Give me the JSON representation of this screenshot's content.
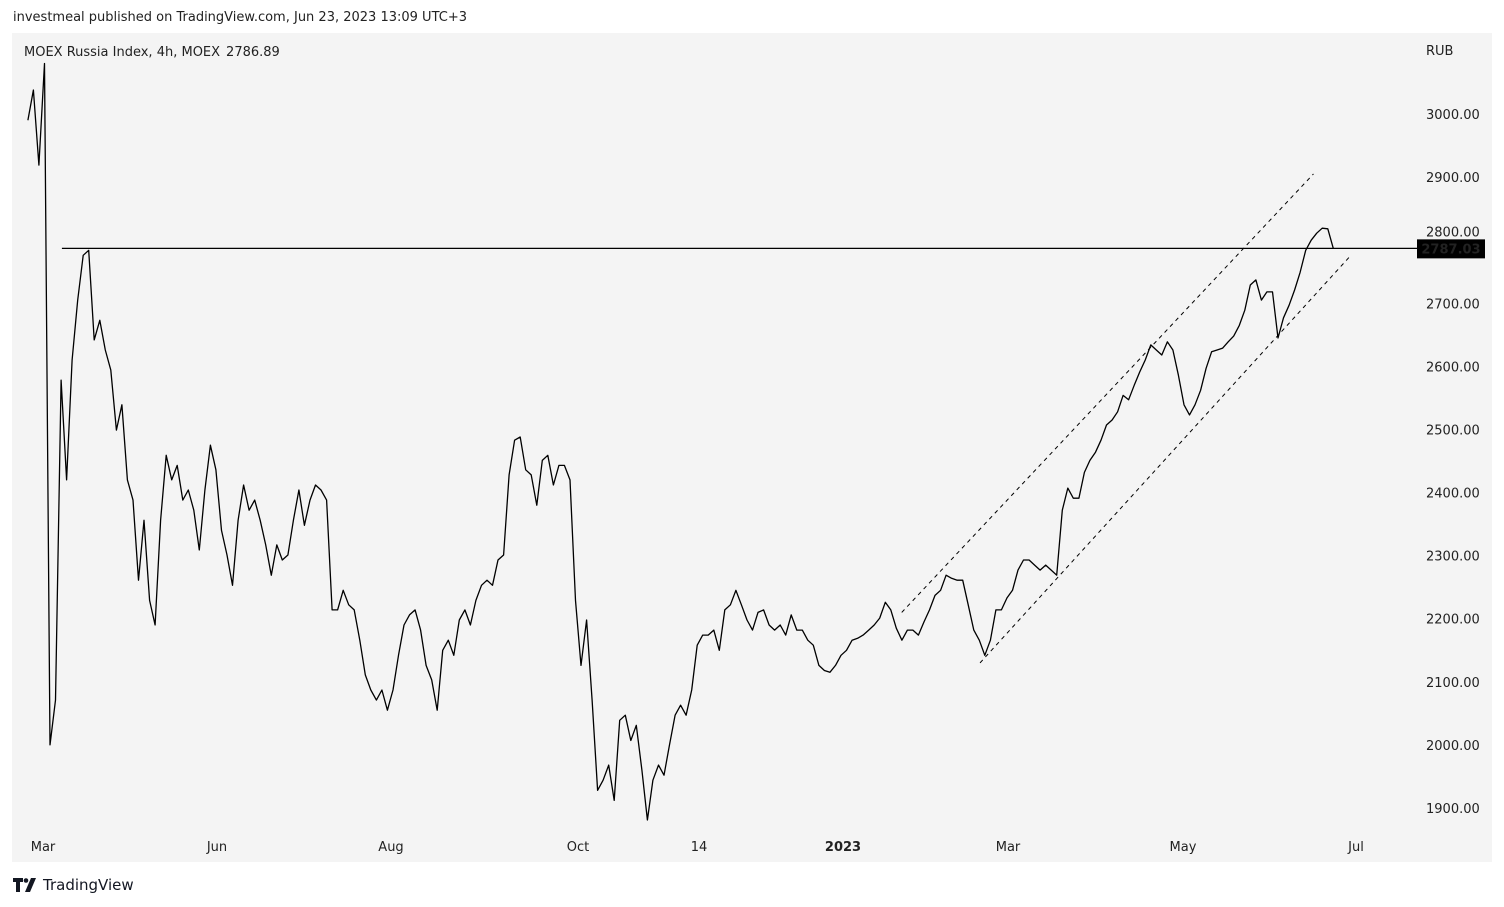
{
  "header": {
    "published": "investmeal published on TradingView.com, Jun 23, 2023 13:09 UTC+3"
  },
  "legend": {
    "symbol": "MOEX Russia Index, 4h, MOEX",
    "last": "2786.89"
  },
  "footer": {
    "brand": "TradingView",
    "icon": "tradingview-logo-icon"
  },
  "colors": {
    "line": "#000000",
    "background": "#f4f4f4",
    "label_bg": "#000000"
  },
  "chart_data": {
    "type": "line",
    "title": "MOEX Russia Index, 4h, MOEX",
    "currency": "RUB",
    "start_date": "2022-02-21",
    "end_date": "2023-06-23",
    "ylim": [
      1850,
      3130
    ],
    "y_ticks": [
      "3000.00",
      "2900.00",
      "2800.00",
      "2700.00",
      "2600.00",
      "2500.00",
      "2400.00",
      "2300.00",
      "2200.00",
      "2100.00",
      "2000.00",
      "1900.00"
    ],
    "x_ticks": [
      {
        "label": "Mar",
        "date": "2022-03-01",
        "bold": false
      },
      {
        "label": "Jun",
        "date": "2022-06-01",
        "bold": false
      },
      {
        "label": "Aug",
        "date": "2022-08-01",
        "bold": false
      },
      {
        "label": "Oct",
        "date": "2022-10-01",
        "bold": false
      },
      {
        "label": "14",
        "date": "2022-11-14",
        "bold": false
      },
      {
        "label": "2023",
        "date": "2023-01-01",
        "bold": true
      },
      {
        "label": "Mar",
        "date": "2023-03-01",
        "bold": false
      },
      {
        "label": "May",
        "date": "2023-05-01",
        "bold": false
      },
      {
        "label": "Jul",
        "date": "2023-07-01",
        "bold": false
      }
    ],
    "values": [
      2990,
      3038,
      2919,
      3080,
      2000,
      2071,
      2578,
      2420,
      2610,
      2705,
      2776,
      2784,
      2642,
      2673,
      2626,
      2594,
      2499,
      2539,
      2420,
      2388,
      2261,
      2356,
      2229,
      2190,
      2356,
      2459,
      2420,
      2443,
      2388,
      2404,
      2372,
      2309,
      2404,
      2475,
      2436,
      2340,
      2301,
      2253,
      2356,
      2412,
      2372,
      2388,
      2356,
      2317,
      2269,
      2317,
      2293,
      2301,
      2356,
      2404,
      2348,
      2388,
      2412,
      2404,
      2388,
      2214,
      2214,
      2245,
      2222,
      2214,
      2166,
      2111,
      2087,
      2071,
      2087,
      2055,
      2087,
      2142,
      2190,
      2206,
      2214,
      2182,
      2126,
      2103,
      2055,
      2150,
      2166,
      2142,
      2198,
      2214,
      2190,
      2229,
      2253,
      2261,
      2253,
      2293,
      2301,
      2428,
      2483,
      2488,
      2436,
      2428,
      2380,
      2451,
      2459,
      2412,
      2443,
      2443,
      2420,
      2229,
      2126,
      2198,
      2071,
      1928,
      1944,
      1968,
      1912,
      2039,
      2047,
      2007,
      2031,
      1960,
      1881,
      1944,
      1968,
      1952,
      2000,
      2047,
      2063,
      2047,
      2087,
      2158,
      2174,
      2174,
      2182,
      2150,
      2214,
      2222,
      2245,
      2222,
      2198,
      2182,
      2210,
      2214,
      2190,
      2182,
      2190,
      2174,
      2206,
      2182,
      2182,
      2166,
      2158,
      2126,
      2118,
      2115,
      2126,
      2142,
      2150,
      2166,
      2169,
      2174,
      2182,
      2190,
      2201,
      2226,
      2214,
      2185,
      2166,
      2182,
      2182,
      2174,
      2195,
      2214,
      2237,
      2245,
      2269,
      2264,
      2261,
      2261,
      2222,
      2182,
      2166,
      2142,
      2166,
      2214,
      2214,
      2233,
      2245,
      2277,
      2293,
      2293,
      2285,
      2277,
      2285,
      2277,
      2269,
      2372,
      2407,
      2391,
      2391,
      2432,
      2451,
      2464,
      2483,
      2507,
      2515,
      2528,
      2554,
      2547,
      2570,
      2591,
      2610,
      2634,
      2626,
      2618,
      2639,
      2626,
      2586,
      2539,
      2523,
      2539,
      2562,
      2597,
      2623,
      2626,
      2629,
      2639,
      2648,
      2665,
      2689,
      2729,
      2737,
      2705,
      2718,
      2718,
      2645,
      2677,
      2697,
      2721,
      2749,
      2784,
      2800,
      2811,
      2819,
      2818,
      2787
    ],
    "horizontal_level": {
      "value": 2787.03,
      "label": "2787.03",
      "start_date": "2022-03-11"
    },
    "channel": {
      "upper": [
        {
          "date": "2023-01-22",
          "value": 2210
        },
        {
          "date": "2023-06-16",
          "value": 2905
        }
      ],
      "lower": [
        {
          "date": "2023-02-19",
          "value": 2130
        },
        {
          "date": "2023-06-29",
          "value": 2775
        }
      ]
    }
  }
}
